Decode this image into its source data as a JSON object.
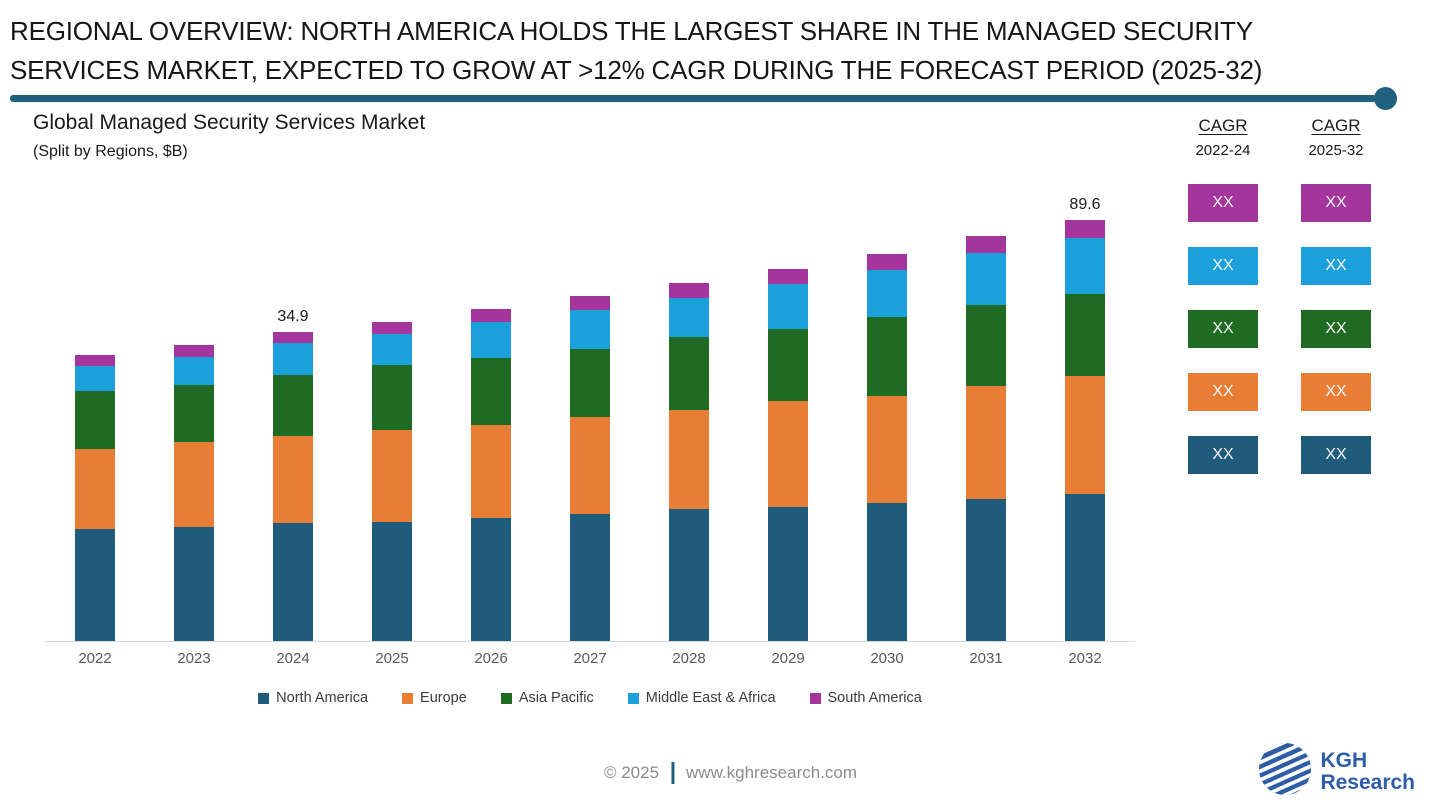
{
  "slide_title": {
    "line1": "REGIONAL OVERVIEW: NORTH AMERICA HOLDS THE LARGEST SHARE IN THE MANAGED SECURITY",
    "line2": "SERVICES MARKET, EXPECTED TO GROW AT >12% CAGR DURING THE FORECAST PERIOD (2025-32)"
  },
  "chart_header": {
    "title": "Global Managed Security Services Market",
    "subtitle": "(Split by Regions, $B)"
  },
  "cagr_panel": {
    "columns": [
      {
        "label": "CAGR",
        "period": "2022-24"
      },
      {
        "label": "CAGR",
        "period": "2025-32"
      }
    ],
    "rows": [
      {
        "region": "South America",
        "color": "#A3359D",
        "values": [
          "XX",
          "XX"
        ]
      },
      {
        "region": "Middle East & Africa",
        "color": "#1CA0DB",
        "values": [
          "XX",
          "XX"
        ]
      },
      {
        "region": "Asia Pacific",
        "color": "#1F6B24",
        "values": [
          "XX",
          "XX"
        ]
      },
      {
        "region": "Europe",
        "color": "#E87E35",
        "values": [
          "XX",
          "XX"
        ]
      },
      {
        "region": "North America",
        "color": "#1F5C7C",
        "values": [
          "XX",
          "XX"
        ]
      }
    ]
  },
  "chart_data": {
    "type": "bar",
    "stacked": true,
    "title": "Global Managed Security Services Market",
    "subtitle": "(Split by Regions, $B)",
    "categories": [
      "2022",
      "2023",
      "2024",
      "2025",
      "2026",
      "2027",
      "2028",
      "2029",
      "2030",
      "2031",
      "2032"
    ],
    "series": [
      {
        "name": "North America",
        "color": "#1F5C7C",
        "values": [
          112,
          114,
          118,
          119,
          123,
          127,
          132,
          134,
          138,
          142,
          147
        ]
      },
      {
        "name": "Europe",
        "color": "#E87E35",
        "values": [
          80,
          85,
          87,
          92,
          93,
          97,
          99,
          106,
          107,
          113,
          118
        ]
      },
      {
        "name": "Asia Pacific",
        "color": "#1F6B24",
        "values": [
          58,
          57,
          61,
          65,
          67,
          68,
          73,
          72,
          79,
          81,
          82
        ]
      },
      {
        "name": "Middle East & Africa",
        "color": "#1CA0DB",
        "values": [
          25,
          28,
          32,
          31,
          36,
          39,
          39,
          45,
          47,
          52,
          56
        ]
      },
      {
        "name": "South America",
        "color": "#A3359D",
        "values": [
          11,
          12,
          11,
          12,
          13,
          14,
          15,
          15,
          16,
          17,
          18
        ]
      }
    ],
    "data_labels": [
      {
        "category": "2024",
        "text": "34.9"
      },
      {
        "category": "2032",
        "text": "89.6"
      }
    ],
    "value_units": "relative height units; chart is schematic, only 2024 (34.9) and 2032 (89.6) totals are labeled in $B",
    "ylabel": "",
    "xlabel": "",
    "grid": false,
    "legend_position": "bottom",
    "axis_line_color": "#D9D9D9"
  },
  "footer": {
    "copyright": "© 2025",
    "website": "www.kghresearch.com"
  },
  "logo": {
    "line1": "KGH",
    "line2": "Research",
    "color": "#2E5CA6"
  },
  "theme": {
    "divider_color": "#1E607D",
    "title_color": "#161616",
    "axis_text_color": "#595959",
    "legend_text_color": "#3D3D3D",
    "footer_text_color": "#8C8C8C"
  }
}
